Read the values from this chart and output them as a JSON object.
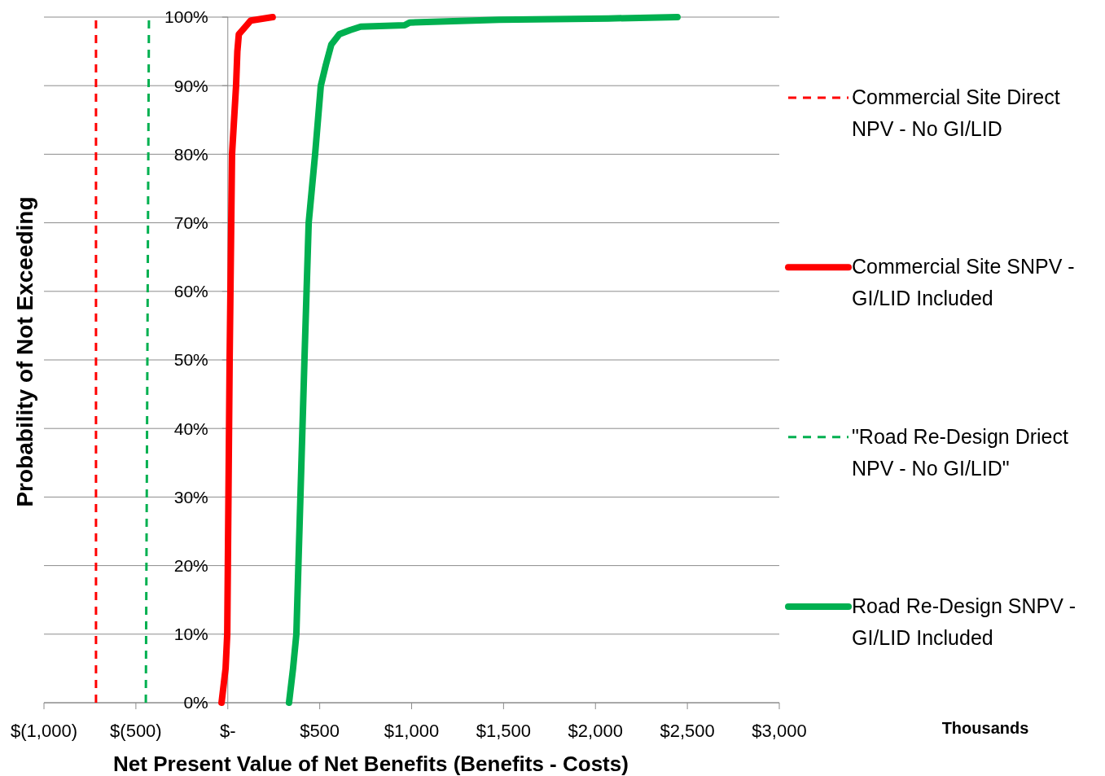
{
  "chart_data": {
    "type": "line",
    "xlabel": "Net Present Value of Net Benefits (Benefits - Costs)",
    "ylabel": "Probability of Not Exceeding",
    "annotations": [
      "Thousands"
    ],
    "xlim": [
      -1000,
      3000
    ],
    "xticks": [
      {
        "value": -1000,
        "label": "$(1,000)"
      },
      {
        "value": -500,
        "label": "$(500)"
      },
      {
        "value": 0,
        "label": "$-"
      },
      {
        "value": 500,
        "label": "$500"
      },
      {
        "value": 1000,
        "label": "$1,000"
      },
      {
        "value": 1500,
        "label": "$1,500"
      },
      {
        "value": 2000,
        "label": "$2,000"
      },
      {
        "value": 2500,
        "label": "$2,500"
      },
      {
        "value": 3000,
        "label": "$3,000"
      }
    ],
    "ylim": [
      0,
      100
    ],
    "yticks": [
      {
        "value": 0,
        "label": "0%"
      },
      {
        "value": 10,
        "label": "10%"
      },
      {
        "value": 20,
        "label": "20%"
      },
      {
        "value": 30,
        "label": "30%"
      },
      {
        "value": 40,
        "label": "40%"
      },
      {
        "value": 50,
        "label": "50%"
      },
      {
        "value": 60,
        "label": "60%"
      },
      {
        "value": 70,
        "label": "70%"
      },
      {
        "value": 80,
        "label": "80%"
      },
      {
        "value": 90,
        "label": "90%"
      },
      {
        "value": 100,
        "label": "100%"
      }
    ],
    "grid": "y",
    "legend": "right",
    "series": [
      {
        "name": "Commercial Site Direct NPV - No GI/LID",
        "color": "#ff0000",
        "line_style": "dashed",
        "x": [
          -717,
          -717
        ],
        "values": [
          0,
          100
        ]
      },
      {
        "name": "Commercial Site SNPV - GI/LID Included",
        "color": "#ff0000",
        "line_style": "solid",
        "x": [
          -34,
          -12,
          -3,
          10,
          23,
          45,
          52,
          60,
          109,
          125,
          244
        ],
        "values": [
          0,
          5,
          10,
          50,
          80,
          90,
          95,
          97.5,
          99,
          99.5,
          100
        ]
      },
      {
        "name": "\"Road Re-Design Driect NPV - No GI/LID\"",
        "color": "#00b050",
        "line_style": "dashed",
        "x": [
          -446,
          -429
        ],
        "values": [
          0,
          100
        ]
      },
      {
        "name": "Road Re-Design SNPV - GI/LID Included",
        "color": "#00b050",
        "line_style": "solid",
        "x": [
          333,
          355,
          373,
          395,
          417,
          440,
          475,
          506,
          533,
          563,
          607,
          665,
          723,
          962,
          989,
          1476,
          2070,
          2446
        ],
        "values": [
          0,
          5,
          10,
          30,
          50,
          70,
          80,
          90,
          93,
          96,
          97.5,
          98.1,
          98.6,
          98.8,
          99.2,
          99.6,
          99.8,
          100
        ]
      }
    ]
  }
}
